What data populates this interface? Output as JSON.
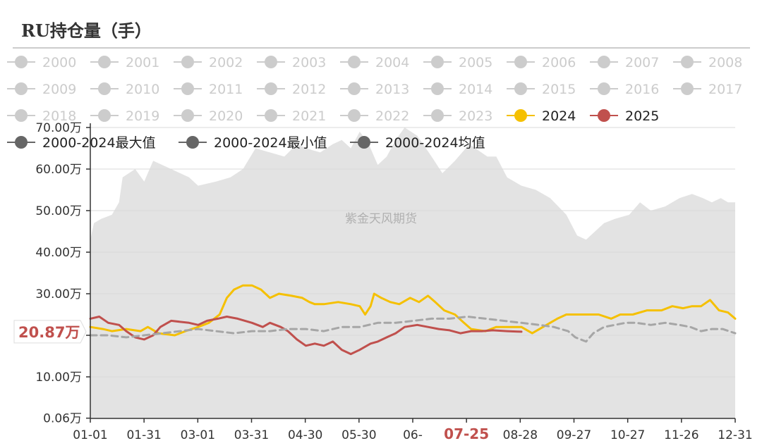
{
  "page": {
    "title": "RU持仓量（手）"
  },
  "chart_data": {
    "type": "line",
    "title": "RU持仓量（手）",
    "watermark": "紫金天风期货",
    "x_ticks": [
      "01-01",
      "01-31",
      "03-01",
      "03-31",
      "04-30",
      "05-30",
      "06-",
      "07-25",
      "08-28",
      "09-27",
      "10-27",
      "11-26",
      "12-31"
    ],
    "x_highlight": {
      "label": "07-25",
      "color": "#c0504d"
    },
    "y_ticks": [
      "0.06万",
      "10.00万",
      "20.00万",
      "30.00万",
      "40.00万",
      "50.00万",
      "60.00万",
      "70.00万"
    ],
    "y_unit": "万",
    "ylim": [
      0.06,
      70
    ],
    "grid": true,
    "y_highlight": {
      "label": "20.87万",
      "value": 20.87,
      "color": "#c0504d"
    },
    "legend_placement": "top",
    "legend_inactive_color": "#cccccc",
    "legend": [
      {
        "name": "2000",
        "active": false,
        "color": "#cccccc"
      },
      {
        "name": "2001",
        "active": false,
        "color": "#cccccc"
      },
      {
        "name": "2002",
        "active": false,
        "color": "#cccccc"
      },
      {
        "name": "2003",
        "active": false,
        "color": "#cccccc"
      },
      {
        "name": "2004",
        "active": false,
        "color": "#cccccc"
      },
      {
        "name": "2005",
        "active": false,
        "color": "#cccccc"
      },
      {
        "name": "2006",
        "active": false,
        "color": "#cccccc"
      },
      {
        "name": "2007",
        "active": false,
        "color": "#cccccc"
      },
      {
        "name": "2008",
        "active": false,
        "color": "#cccccc"
      },
      {
        "name": "2009",
        "active": false,
        "color": "#cccccc"
      },
      {
        "name": "2010",
        "active": false,
        "color": "#cccccc"
      },
      {
        "name": "2011",
        "active": false,
        "color": "#cccccc"
      },
      {
        "name": "2012",
        "active": false,
        "color": "#cccccc"
      },
      {
        "name": "2013",
        "active": false,
        "color": "#cccccc"
      },
      {
        "name": "2014",
        "active": false,
        "color": "#cccccc"
      },
      {
        "name": "2015",
        "active": false,
        "color": "#cccccc"
      },
      {
        "name": "2016",
        "active": false,
        "color": "#cccccc"
      },
      {
        "name": "2017",
        "active": false,
        "color": "#cccccc"
      },
      {
        "name": "2018",
        "active": false,
        "color": "#cccccc"
      },
      {
        "name": "2019",
        "active": false,
        "color": "#cccccc"
      },
      {
        "name": "2020",
        "active": false,
        "color": "#cccccc"
      },
      {
        "name": "2021",
        "active": false,
        "color": "#cccccc"
      },
      {
        "name": "2022",
        "active": false,
        "color": "#cccccc"
      },
      {
        "name": "2023",
        "active": false,
        "color": "#cccccc"
      },
      {
        "name": "2024",
        "active": true,
        "color": "#f5c000"
      },
      {
        "name": "2025",
        "active": true,
        "color": "#c0504d"
      },
      {
        "name": "2000-2024最大值",
        "active": true,
        "color": "#666666"
      },
      {
        "name": "2000-2024最小值",
        "active": true,
        "color": "#666666"
      },
      {
        "name": "2000-2024均值",
        "active": true,
        "color": "#666666"
      }
    ],
    "band": {
      "name": "2000-2024最大值 / 2000-2024最小值",
      "color": "#e3e3e3",
      "max": [
        [
          0,
          43
        ],
        [
          2,
          47
        ],
        [
          6,
          48
        ],
        [
          12,
          49
        ],
        [
          16,
          52
        ],
        [
          18,
          58
        ],
        [
          25,
          60
        ],
        [
          30,
          57
        ],
        [
          35,
          62
        ],
        [
          45,
          60
        ],
        [
          55,
          58
        ],
        [
          60,
          56
        ],
        [
          70,
          57
        ],
        [
          78,
          58
        ],
        [
          85,
          60
        ],
        [
          92,
          65
        ],
        [
          100,
          64
        ],
        [
          108,
          63
        ],
        [
          115,
          66
        ],
        [
          120,
          65
        ],
        [
          128,
          64
        ],
        [
          135,
          66
        ],
        [
          140,
          67
        ],
        [
          145,
          65
        ],
        [
          150,
          69
        ],
        [
          155,
          66
        ],
        [
          160,
          61
        ],
        [
          165,
          63
        ],
        [
          170,
          67
        ],
        [
          175,
          70
        ],
        [
          182,
          68
        ],
        [
          190,
          63
        ],
        [
          196,
          59
        ],
        [
          203,
          62
        ],
        [
          211,
          66
        ],
        [
          221,
          63
        ],
        [
          226,
          63
        ],
        [
          232,
          58
        ],
        [
          240,
          56
        ],
        [
          248,
          55
        ],
        [
          256,
          53
        ],
        [
          265,
          49
        ],
        [
          271,
          44
        ],
        [
          276,
          43
        ],
        [
          281,
          45
        ],
        [
          286,
          47
        ],
        [
          292,
          48
        ],
        [
          300,
          49
        ],
        [
          306,
          52
        ],
        [
          312,
          50
        ],
        [
          320,
          51
        ],
        [
          328,
          53
        ],
        [
          335,
          54
        ],
        [
          341,
          53
        ],
        [
          346,
          52
        ],
        [
          351,
          53
        ],
        [
          355,
          52
        ],
        [
          359,
          52
        ]
      ],
      "min": [
        [
          0,
          0.06
        ],
        [
          359,
          0.06
        ]
      ]
    },
    "series": [
      {
        "name": "2024",
        "color": "#f5c000",
        "style": "solid",
        "points": [
          [
            0,
            22
          ],
          [
            7,
            21.5
          ],
          [
            12,
            21
          ],
          [
            20,
            21.5
          ],
          [
            28,
            21
          ],
          [
            32,
            22
          ],
          [
            38,
            20.5
          ],
          [
            47,
            20
          ],
          [
            53,
            21
          ],
          [
            60,
            22
          ],
          [
            66,
            23
          ],
          [
            72,
            25
          ],
          [
            76,
            29
          ],
          [
            80,
            31
          ],
          [
            85,
            32
          ],
          [
            90,
            32
          ],
          [
            95,
            31
          ],
          [
            100,
            29
          ],
          [
            105,
            30
          ],
          [
            112,
            29.5
          ],
          [
            118,
            29
          ],
          [
            122,
            28
          ],
          [
            125,
            27.5
          ],
          [
            130,
            27.5
          ],
          [
            138,
            28
          ],
          [
            145,
            27.5
          ],
          [
            150,
            27
          ],
          [
            153,
            25
          ],
          [
            156,
            27
          ],
          [
            158,
            30
          ],
          [
            162,
            29
          ],
          [
            167,
            28
          ],
          [
            172,
            27.5
          ],
          [
            178,
            29
          ],
          [
            183,
            28
          ],
          [
            188,
            29.5
          ],
          [
            192,
            28
          ],
          [
            197,
            26
          ],
          [
            203,
            25
          ],
          [
            208,
            23
          ],
          [
            212,
            21.5
          ],
          [
            220,
            21
          ],
          [
            226,
            22
          ],
          [
            232,
            22
          ],
          [
            240,
            22
          ],
          [
            246,
            20.5
          ],
          [
            252,
            22
          ],
          [
            260,
            24
          ],
          [
            265,
            25
          ],
          [
            270,
            25
          ],
          [
            276,
            25
          ],
          [
            283,
            25
          ],
          [
            290,
            24
          ],
          [
            295,
            25
          ],
          [
            302,
            25
          ],
          [
            310,
            26
          ],
          [
            318,
            26
          ],
          [
            324,
            27
          ],
          [
            330,
            26.5
          ],
          [
            335,
            27
          ],
          [
            340,
            27
          ],
          [
            345,
            28.5
          ],
          [
            350,
            26
          ],
          [
            355,
            25.5
          ],
          [
            359,
            24
          ]
        ]
      },
      {
        "name": "2025",
        "color": "#c0504d",
        "style": "solid",
        "points": [
          [
            0,
            24
          ],
          [
            5,
            24.5
          ],
          [
            10,
            23
          ],
          [
            16,
            22.5
          ],
          [
            20,
            21
          ],
          [
            25,
            19.5
          ],
          [
            30,
            19
          ],
          [
            35,
            20
          ],
          [
            39,
            22
          ],
          [
            45,
            23.5
          ],
          [
            55,
            23
          ],
          [
            60,
            22.5
          ],
          [
            65,
            23.5
          ],
          [
            71,
            24
          ],
          [
            76,
            24.5
          ],
          [
            82,
            24
          ],
          [
            90,
            23
          ],
          [
            96,
            22
          ],
          [
            100,
            23
          ],
          [
            106,
            22
          ],
          [
            110,
            21
          ],
          [
            115,
            19
          ],
          [
            120,
            17.5
          ],
          [
            125,
            18
          ],
          [
            130,
            17.5
          ],
          [
            135,
            18.5
          ],
          [
            140,
            16.5
          ],
          [
            145,
            15.5
          ],
          [
            150,
            16.5
          ],
          [
            156,
            18
          ],
          [
            160,
            18.5
          ],
          [
            165,
            19.5
          ],
          [
            170,
            20.5
          ],
          [
            175,
            22
          ],
          [
            182,
            22.5
          ],
          [
            188,
            22
          ],
          [
            194,
            21.5
          ],
          [
            200,
            21.2
          ],
          [
            206,
            20.5
          ],
          [
            212,
            21
          ],
          [
            218,
            21
          ],
          [
            224,
            21.2
          ],
          [
            232,
            21
          ],
          [
            238,
            20.9
          ],
          [
            240,
            20.87
          ]
        ]
      },
      {
        "name": "2000-2024均值",
        "color": "#a6a6a6",
        "style": "dashed",
        "points": [
          [
            0,
            20
          ],
          [
            10,
            20
          ],
          [
            20,
            19.5
          ],
          [
            30,
            20
          ],
          [
            40,
            20.5
          ],
          [
            50,
            21
          ],
          [
            60,
            21.5
          ],
          [
            70,
            21
          ],
          [
            80,
            20.5
          ],
          [
            90,
            21
          ],
          [
            100,
            21
          ],
          [
            110,
            21.5
          ],
          [
            120,
            21.5
          ],
          [
            130,
            21
          ],
          [
            140,
            22
          ],
          [
            150,
            22
          ],
          [
            160,
            23
          ],
          [
            170,
            23
          ],
          [
            180,
            23.5
          ],
          [
            190,
            24
          ],
          [
            200,
            24
          ],
          [
            210,
            24.5
          ],
          [
            220,
            24
          ],
          [
            230,
            23.5
          ],
          [
            240,
            23
          ],
          [
            250,
            22.5
          ],
          [
            258,
            22
          ],
          [
            266,
            21
          ],
          [
            270,
            19.5
          ],
          [
            276,
            18.5
          ],
          [
            280,
            20.5
          ],
          [
            286,
            22
          ],
          [
            292,
            22.5
          ],
          [
            298,
            23
          ],
          [
            304,
            23
          ],
          [
            312,
            22.5
          ],
          [
            320,
            23
          ],
          [
            328,
            22.5
          ],
          [
            334,
            22
          ],
          [
            340,
            21
          ],
          [
            346,
            21.5
          ],
          [
            352,
            21.5
          ],
          [
            359,
            20.5
          ]
        ]
      }
    ]
  }
}
